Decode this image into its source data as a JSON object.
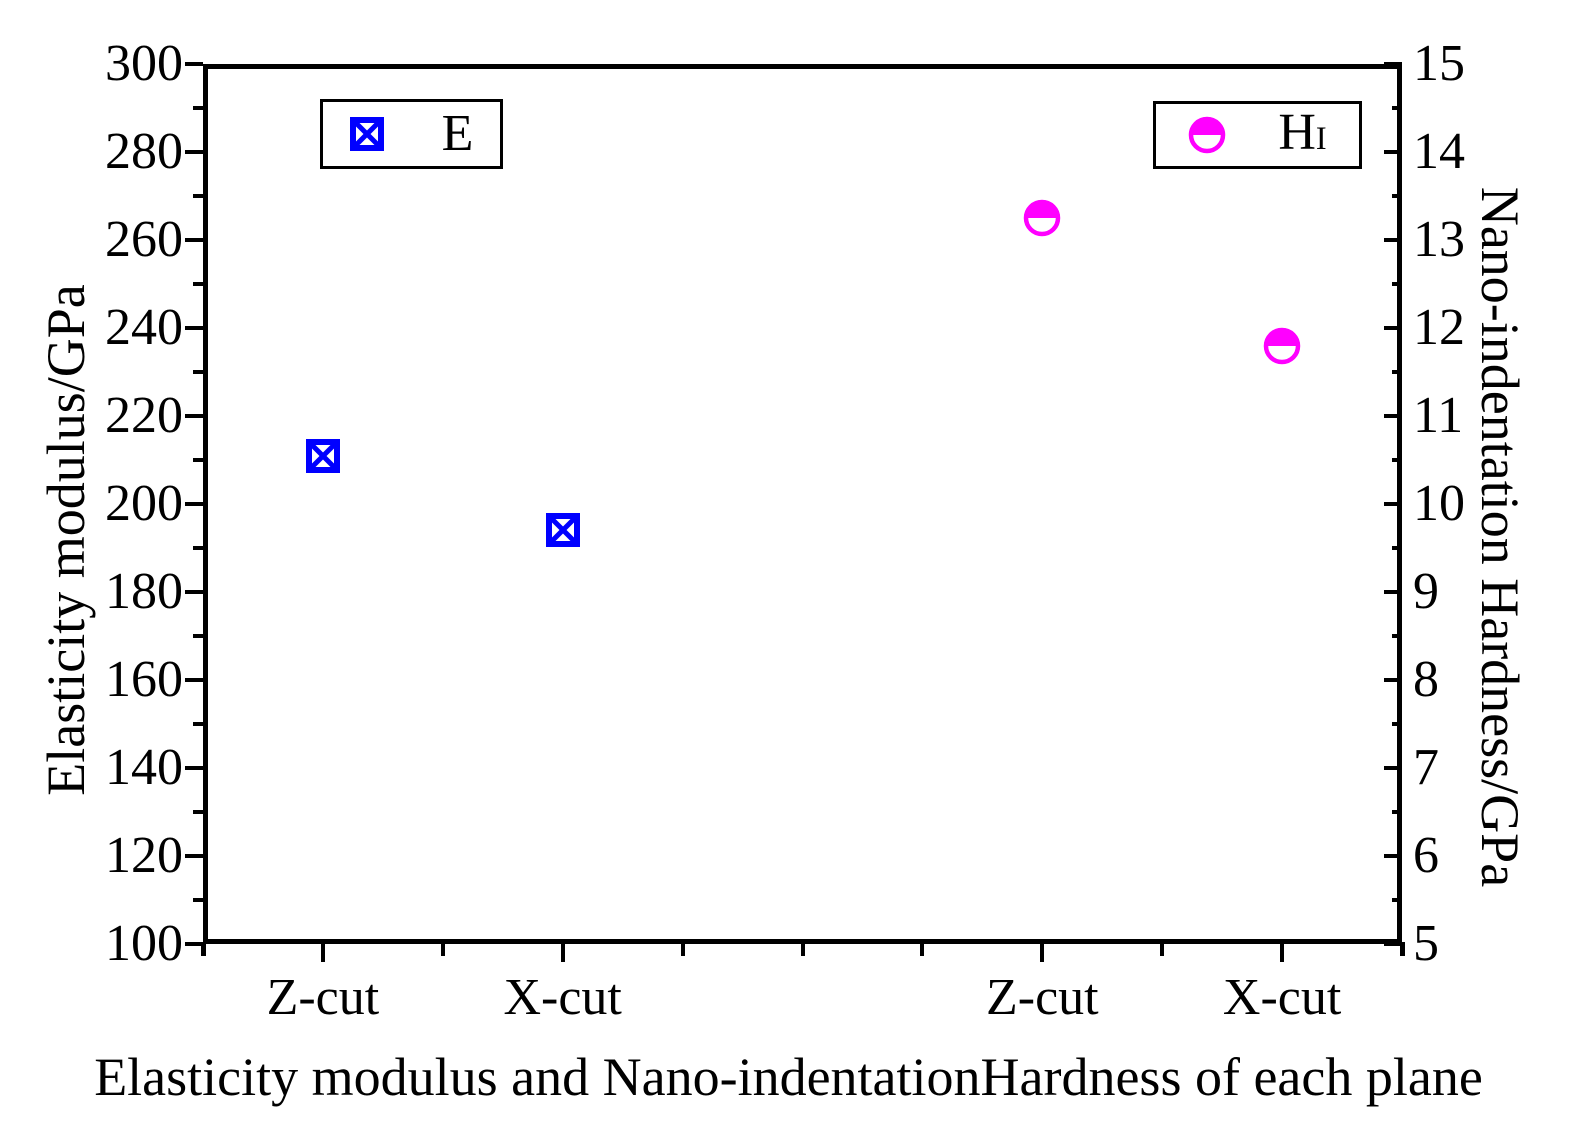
{
  "chart_data": {
    "type": "scatter",
    "x_axis": {
      "title": "Elasticity modulus and Nano-indentationHardness of each plane",
      "ticks": [
        {
          "pos": 0.1,
          "label": "Z-cut",
          "major": true
        },
        {
          "pos": 0.2,
          "label": "",
          "major": false
        },
        {
          "pos": 0.3,
          "label": "X-cut",
          "major": true
        },
        {
          "pos": 0.4,
          "label": "",
          "major": false
        },
        {
          "pos": 0.5,
          "label": "",
          "major": false
        },
        {
          "pos": 0.6,
          "label": "",
          "major": false
        },
        {
          "pos": 0.7,
          "label": "Z-cut",
          "major": true
        },
        {
          "pos": 0.8,
          "label": "",
          "major": false
        },
        {
          "pos": 0.9,
          "label": "X-cut",
          "major": true
        }
      ],
      "edge_ticks": [
        0,
        1
      ]
    },
    "left_axis": {
      "title": "Elasticity modulus/GPa",
      "min": 100,
      "max": 300,
      "major_step": 20,
      "minor_step": 10
    },
    "right_axis": {
      "title": "Nano-indentation Hardness/GPa",
      "min": 5,
      "max": 15,
      "major_step": 1,
      "minor_step": 0.5
    },
    "series": [
      {
        "name": "E",
        "axis": "left",
        "marker": "crossed-square",
        "color": "#0000ff",
        "points": [
          {
            "category": "Z-cut",
            "x": 0.1,
            "value": 211
          },
          {
            "category": "X-cut",
            "x": 0.3,
            "value": 194
          }
        ]
      },
      {
        "name": "HI",
        "axis": "right",
        "marker": "half-filled-circle",
        "color": "#ff00ff",
        "points": [
          {
            "category": "Z-cut",
            "x": 0.7,
            "value": 13.25
          },
          {
            "category": "X-cut",
            "x": 0.9,
            "value": 11.8
          }
        ]
      }
    ]
  },
  "legend": {
    "e": {
      "label": "E"
    },
    "h": {
      "label_main": "H",
      "label_sub": "I"
    }
  },
  "colors": {
    "axis": "#000000",
    "background": "#ffffff",
    "series_e": "#0000ff",
    "series_h": "#ff00ff"
  }
}
